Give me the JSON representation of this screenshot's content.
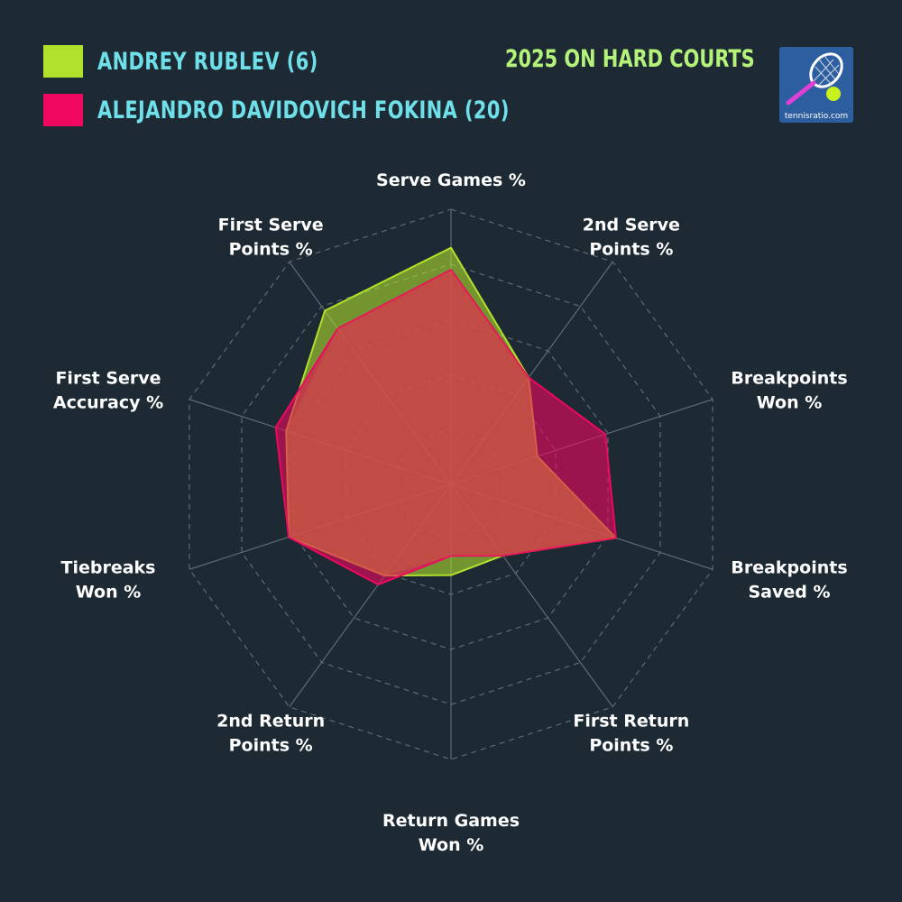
{
  "legend": {
    "player1": {
      "name": "ANDREY RUBLEV (6)",
      "color": "#b1e12d"
    },
    "player2": {
      "name": "ALEJANDRO DAVIDOVICH FOKINA (20)",
      "color": "#f0075f"
    }
  },
  "subtitle": "2025 ON HARD COURTS",
  "logo": {
    "text": "tennisratio.com",
    "icon": "tennis-racket-and-ball-icon"
  },
  "chart_data": {
    "type": "radar",
    "grid_levels": 5,
    "grid": true,
    "axes": [
      "Serve Games %",
      "2nd Serve Points %",
      "Breakpoints Won %",
      "Breakpoints Saved %",
      "First Return Points %",
      "Return Games Won %",
      "2nd Return Points %",
      "Tiebreaks Won %",
      "First Serve Accuracy %",
      "First Serve Points %"
    ],
    "axis_label_lines": [
      [
        "Serve Games %"
      ],
      [
        "2nd Serve",
        "Points %"
      ],
      [
        "Breakpoints",
        "Won %"
      ],
      [
        "Breakpoints",
        "Saved %"
      ],
      [
        "First Return",
        "Points %"
      ],
      [
        "Return Games",
        "Won %"
      ],
      [
        "2nd Return",
        "Points %"
      ],
      [
        "Tiebreaks",
        "Won %"
      ],
      [
        "First Serve",
        "Accuracy %"
      ],
      [
        "First Serve",
        "Points %"
      ]
    ],
    "series": [
      {
        "name": "ANDREY RUBLEV (6)",
        "color": "#b1e12d",
        "values": [
          0.86,
          0.48,
          0.33,
          0.63,
          0.32,
          0.33,
          0.41,
          0.62,
          0.63,
          0.78
        ]
      },
      {
        "name": "ALEJANDRO DAVIDOVICH FOKINA (20)",
        "color": "#f0075f",
        "values": [
          0.78,
          0.48,
          0.59,
          0.63,
          0.32,
          0.26,
          0.45,
          0.62,
          0.67,
          0.7
        ]
      }
    ]
  }
}
